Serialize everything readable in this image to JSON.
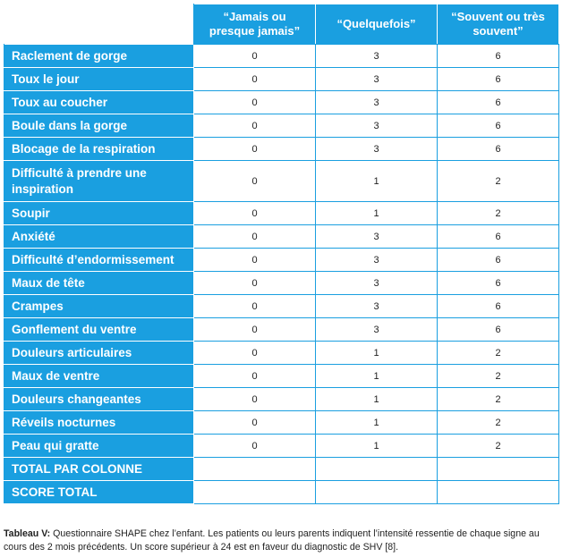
{
  "table": {
    "headers": [
      "“Jamais ou presque jamais”",
      "“Quelquefois”",
      "“Souvent ou très souvent”"
    ],
    "rows": [
      {
        "label": "Raclement de gorge",
        "values": [
          "0",
          "3",
          "6"
        ]
      },
      {
        "label": "Toux le jour",
        "values": [
          "0",
          "3",
          "6"
        ]
      },
      {
        "label": "Toux au coucher",
        "values": [
          "0",
          "3",
          "6"
        ]
      },
      {
        "label": "Boule dans la gorge",
        "values": [
          "0",
          "3",
          "6"
        ]
      },
      {
        "label": "Blocage de la respiration",
        "values": [
          "0",
          "3",
          "6"
        ]
      },
      {
        "label": "Difficulté à prendre une inspiration",
        "values": [
          "0",
          "1",
          "2"
        ]
      },
      {
        "label": "Soupir",
        "values": [
          "0",
          "1",
          "2"
        ]
      },
      {
        "label": "Anxiété",
        "values": [
          "0",
          "3",
          "6"
        ]
      },
      {
        "label": "Difficulté d’endormissement",
        "values": [
          "0",
          "3",
          "6"
        ]
      },
      {
        "label": "Maux de tête",
        "values": [
          "0",
          "3",
          "6"
        ]
      },
      {
        "label": "Crampes",
        "values": [
          "0",
          "3",
          "6"
        ]
      },
      {
        "label": "Gonflement du ventre",
        "values": [
          "0",
          "3",
          "6"
        ]
      },
      {
        "label": "Douleurs articulaires",
        "values": [
          "0",
          "1",
          "2"
        ]
      },
      {
        "label": "Maux de ventre",
        "values": [
          "0",
          "1",
          "2"
        ]
      },
      {
        "label": "Douleurs changeantes",
        "values": [
          "0",
          "1",
          "2"
        ]
      },
      {
        "label": "Réveils nocturnes",
        "values": [
          "0",
          "1",
          "2"
        ]
      },
      {
        "label": "Peau qui gratte",
        "values": [
          "0",
          "1",
          "2"
        ]
      }
    ],
    "total_rows": [
      {
        "label": "TOTAL PAR COLONNE"
      },
      {
        "label": "SCORE TOTAL"
      }
    ]
  },
  "caption": {
    "label": "Tableau V:",
    "text": " Questionnaire SHAPE chez l’enfant. Les patients ou leurs parents indiquent l’intensité ressentie de chaque signe au cours des 2 mois précédents. Un score supérieur à 24 est en faveur du diagnostic de SHV [8]."
  },
  "colors": {
    "accent": "#1a9fe0",
    "text": "#222222"
  }
}
